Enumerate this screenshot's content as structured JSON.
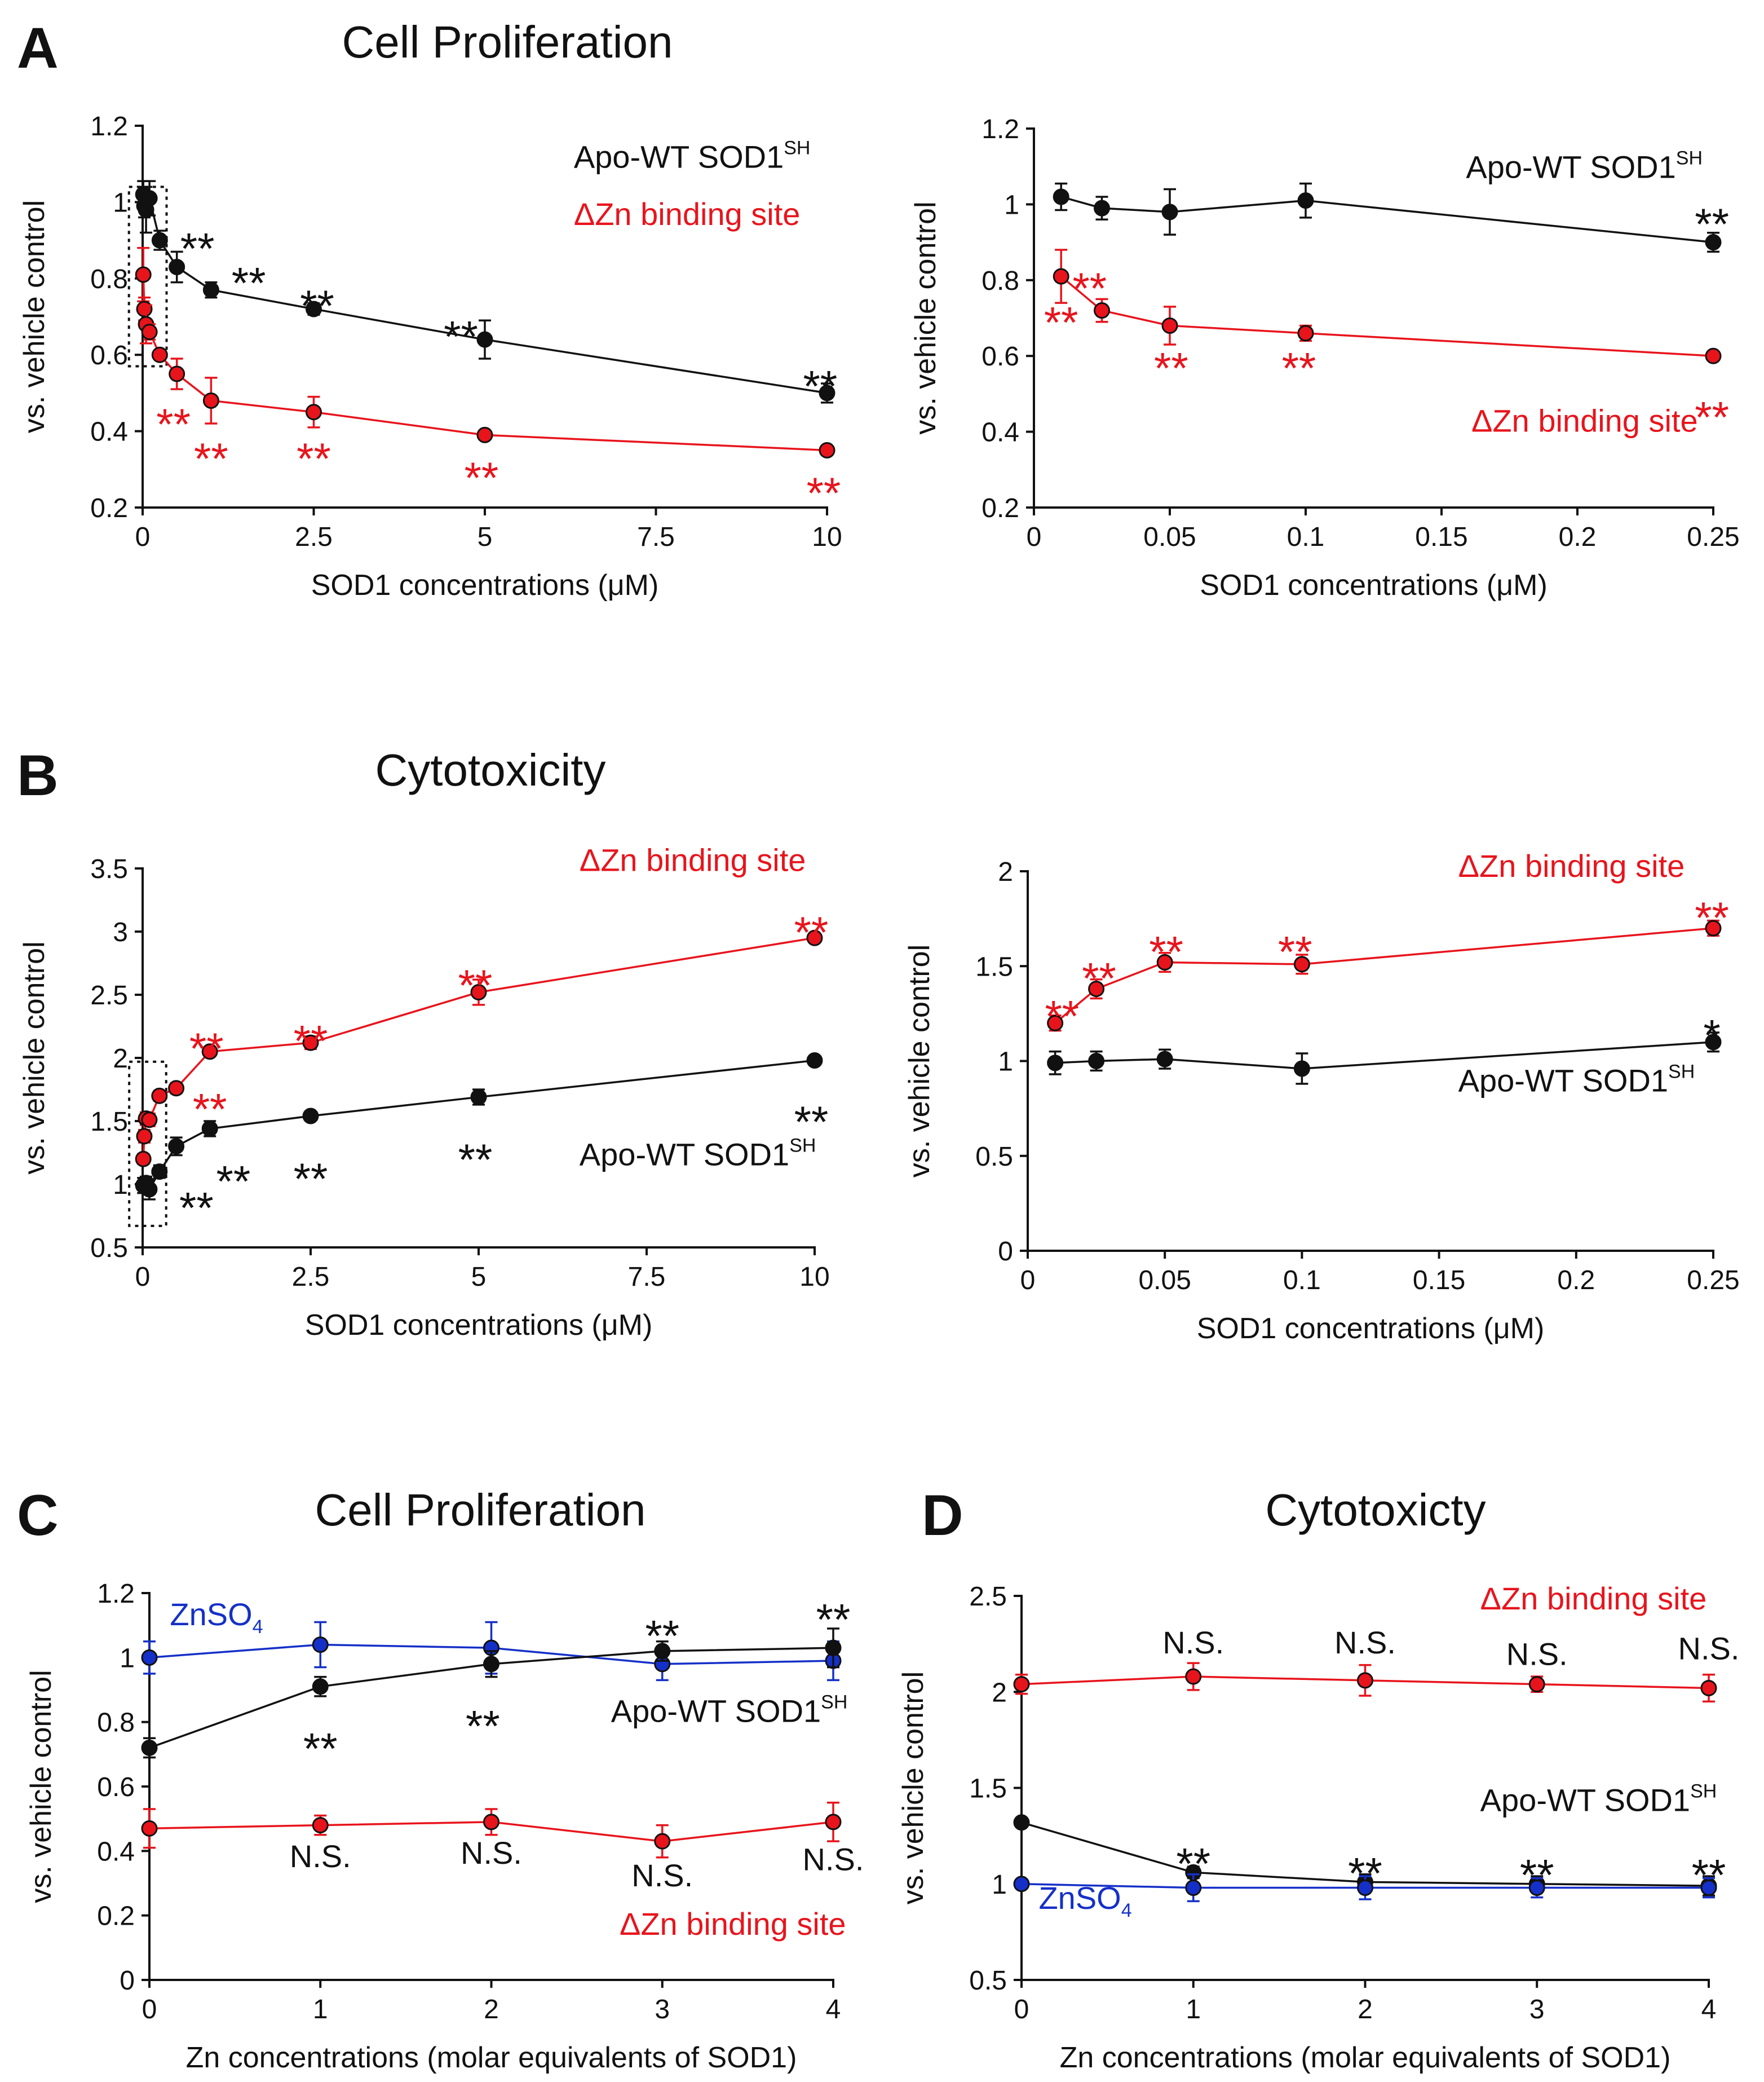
{
  "figure": {
    "panel_letters": [
      "A",
      "B",
      "C",
      "D"
    ],
    "titles": {
      "A": "Cell Proliferation",
      "B": "Cytotoxicity",
      "C": "Cell Proliferation",
      "D": "Cytotoxicty"
    }
  },
  "colors": {
    "black": "#111111",
    "red": "#e8141c",
    "blue": "#1530c8"
  },
  "chart_data": [
    {
      "id": "A-left",
      "panel": "A",
      "type": "line",
      "xlabel": "SOD1 concentrations (μM)",
      "ylabel": "vs. vehicle control",
      "xlim": [
        0,
        10
      ],
      "ylim": [
        0.2,
        1.2
      ],
      "xticks": [
        0,
        2.5,
        5,
        7.5,
        10
      ],
      "xtick_labels": [
        "0",
        "2.5",
        "5",
        "7.5",
        "10"
      ],
      "yticks": [
        0.2,
        0.4,
        0.6,
        0.8,
        1,
        1.2
      ],
      "ytick_labels": [
        "0.2",
        "0.4",
        "0.6",
        "0.8",
        "1",
        "1.2"
      ],
      "zoom_box": {
        "x": [
          -0.2,
          0.35
        ],
        "y": [
          0.57,
          1.04
        ]
      },
      "series": [
        {
          "color": "#111111",
          "x": [
            0.01,
            0.025,
            0.05,
            0.1,
            0.25,
            0.5,
            1,
            2.5,
            5,
            10
          ],
          "y": [
            1.02,
            0.99,
            0.98,
            1.01,
            0.9,
            0.83,
            0.77,
            0.72,
            0.64,
            0.5
          ],
          "err": [
            0.035,
            0.03,
            0.06,
            0.045,
            0.025,
            0.04,
            0.02,
            0.015,
            0.05,
            0.025
          ]
        },
        {
          "color": "#e8141c",
          "x": [
            0.01,
            0.025,
            0.05,
            0.1,
            0.25,
            0.5,
            1,
            2.5,
            5,
            10
          ],
          "y": [
            0.81,
            0.72,
            0.68,
            0.66,
            0.6,
            0.55,
            0.48,
            0.45,
            0.39,
            0.35
          ],
          "err": [
            0.07,
            0.03,
            0.05,
            0.02,
            0.005,
            0.04,
            0.06,
            0.04,
            0.005,
            0.01
          ]
        }
      ],
      "labels": [
        {
          "text": "Apo-WT SOD1",
          "sup": "SH",
          "color": "#111111",
          "x": 6.3,
          "y": 1.09
        },
        {
          "text": "ΔZn binding site",
          "color": "#e8141c",
          "x": 6.3,
          "y": 0.94
        }
      ],
      "annotations": [
        {
          "text": "**",
          "color": "#111111",
          "x": 0.8,
          "y": 0.88
        },
        {
          "text": "**",
          "color": "#111111",
          "x": 1.55,
          "y": 0.79
        },
        {
          "text": "**",
          "color": "#111111",
          "x": 2.55,
          "y": 0.73
        },
        {
          "text": "**",
          "color": "#111111",
          "x": 4.65,
          "y": 0.65
        },
        {
          "text": "**",
          "color": "#111111",
          "x": 9.9,
          "y": 0.52
        },
        {
          "text": "**",
          "color": "#e8141c",
          "x": 0.45,
          "y": 0.42
        },
        {
          "text": "**",
          "color": "#e8141c",
          "x": 1.0,
          "y": 0.33
        },
        {
          "text": "**",
          "color": "#e8141c",
          "x": 2.5,
          "y": 0.33
        },
        {
          "text": "**",
          "color": "#e8141c",
          "x": 4.95,
          "y": 0.28
        },
        {
          "text": "**",
          "color": "#e8141c",
          "x": 9.95,
          "y": 0.24
        }
      ]
    },
    {
      "id": "A-right",
      "panel": "A",
      "type": "line",
      "xlabel": "SOD1 concentrations (μM)",
      "ylabel": "vs. vehicle control",
      "xlim": [
        0,
        0.25
      ],
      "ylim": [
        0.2,
        1.2
      ],
      "xticks": [
        0,
        0.05,
        0.1,
        0.15,
        0.2,
        0.25
      ],
      "xtick_labels": [
        "0",
        "0.05",
        "0.1",
        "0.15",
        "0.2",
        "0.25"
      ],
      "yticks": [
        0.2,
        0.4,
        0.6,
        0.8,
        1,
        1.2
      ],
      "ytick_labels": [
        "0.2",
        "0.4",
        "0.6",
        "0.8",
        "1",
        "1.2"
      ],
      "series": [
        {
          "color": "#111111",
          "x": [
            0.01,
            0.025,
            0.05,
            0.1,
            0.25
          ],
          "y": [
            1.02,
            0.99,
            0.98,
            1.01,
            0.9
          ],
          "err": [
            0.035,
            0.03,
            0.06,
            0.045,
            0.025
          ]
        },
        {
          "color": "#e8141c",
          "x": [
            0.01,
            0.025,
            0.05,
            0.1,
            0.25
          ],
          "y": [
            0.81,
            0.72,
            0.68,
            0.66,
            0.6
          ],
          "err": [
            0.07,
            0.03,
            0.05,
            0.02,
            0.005
          ]
        }
      ],
      "labels": [
        {
          "text": "Apo-WT SOD1",
          "sup": "SH",
          "color": "#111111",
          "x": 0.159,
          "y": 1.07
        },
        {
          "text": "ΔZn binding site",
          "color": "#e8141c",
          "x": 0.161,
          "y": 0.4
        }
      ],
      "annotations": [
        {
          "text": "**",
          "color": "#111111",
          "x": 0.2495,
          "y": 0.95
        },
        {
          "text": "**",
          "color": "#e8141c",
          "x": 0.0205,
          "y": 0.78
        },
        {
          "text": "**",
          "color": "#e8141c",
          "x": 0.01,
          "y": 0.69
        },
        {
          "text": "**",
          "color": "#e8141c",
          "x": 0.0505,
          "y": 0.57
        },
        {
          "text": "**",
          "color": "#e8141c",
          "x": 0.0975,
          "y": 0.57
        },
        {
          "text": "**",
          "color": "#e8141c",
          "x": 0.2495,
          "y": 0.44
        }
      ]
    },
    {
      "id": "B-left",
      "panel": "B",
      "type": "line",
      "xlabel": "SOD1 concentrations (μM)",
      "ylabel": "vs. vehicle control",
      "xlim": [
        0,
        10
      ],
      "ylim": [
        0.5,
        3.5
      ],
      "xticks": [
        0,
        2.5,
        5,
        7.5,
        10
      ],
      "xtick_labels": [
        "0",
        "2.5",
        "5",
        "7.5",
        "10"
      ],
      "yticks": [
        0.5,
        1,
        1.5,
        2,
        2.5,
        3,
        3.5
      ],
      "ytick_labels": [
        "0.5",
        "1",
        "1.5",
        "2",
        "2.5",
        "3",
        "3.5"
      ],
      "zoom_box": {
        "x": [
          -0.2,
          0.35
        ],
        "y": [
          0.67,
          1.97
        ]
      },
      "series": [
        {
          "color": "#e8141c",
          "x": [
            0.01,
            0.025,
            0.05,
            0.1,
            0.25,
            0.5,
            1,
            2.5,
            5,
            10
          ],
          "y": [
            1.2,
            1.38,
            1.52,
            1.51,
            1.7,
            1.76,
            2.05,
            2.12,
            2.52,
            2.95
          ],
          "err": [
            0.04,
            0.05,
            0.05,
            0.05,
            0.04,
            0.04,
            0.03,
            0.05,
            0.1,
            0.02
          ]
        },
        {
          "color": "#111111",
          "x": [
            0.01,
            0.025,
            0.05,
            0.1,
            0.25,
            0.5,
            1,
            2.5,
            5,
            10
          ],
          "y": [
            0.99,
            1.0,
            1.01,
            0.96,
            1.1,
            1.3,
            1.44,
            1.54,
            1.69,
            1.98
          ],
          "err": [
            0.06,
            0.05,
            0.05,
            0.08,
            0.05,
            0.07,
            0.06,
            0.03,
            0.06,
            0.02
          ]
        }
      ],
      "labels": [
        {
          "text": "ΔZn binding site",
          "color": "#e8141c",
          "x": 6.5,
          "y": 3.48
        },
        {
          "text": "Apo-WT SOD1",
          "sup": "SH",
          "color": "#111111",
          "x": 6.5,
          "y": 1.15
        }
      ],
      "annotations": [
        {
          "text": "**",
          "color": "#e8141c",
          "x": 9.95,
          "y": 3.0
        },
        {
          "text": "**",
          "color": "#e8141c",
          "x": 4.95,
          "y": 2.58
        },
        {
          "text": "**",
          "color": "#e8141c",
          "x": 2.5,
          "y": 2.14
        },
        {
          "text": "**",
          "color": "#e8141c",
          "x": 0.95,
          "y": 2.08
        },
        {
          "text": "**",
          "color": "#e8141c",
          "x": 1.0,
          "y": 1.6
        },
        {
          "text": "**",
          "color": "#111111",
          "x": 1.35,
          "y": 1.03
        },
        {
          "text": "**",
          "color": "#111111",
          "x": 0.8,
          "y": 0.82
        },
        {
          "text": "**",
          "color": "#111111",
          "x": 2.5,
          "y": 1.05
        },
        {
          "text": "**",
          "color": "#111111",
          "x": 4.95,
          "y": 1.2
        },
        {
          "text": "**",
          "color": "#111111",
          "x": 9.95,
          "y": 1.5
        }
      ]
    },
    {
      "id": "B-right",
      "panel": "B",
      "type": "line",
      "xlabel": "SOD1 concentrations (μM)",
      "ylabel": "vs. vehicle control",
      "xlim": [
        0,
        0.25
      ],
      "ylim": [
        0,
        2
      ],
      "xticks": [
        0,
        0.05,
        0.1,
        0.15,
        0.2,
        0.25
      ],
      "xtick_labels": [
        "0",
        "0.05",
        "0.1",
        "0.15",
        "0.2",
        "0.25"
      ],
      "yticks": [
        0,
        0.5,
        1,
        1.5,
        2
      ],
      "ytick_labels": [
        "0",
        "0.5",
        "1",
        "1.5",
        "2"
      ],
      "series": [
        {
          "color": "#e8141c",
          "x": [
            0.01,
            0.025,
            0.05,
            0.1,
            0.25
          ],
          "y": [
            1.2,
            1.38,
            1.52,
            1.51,
            1.7
          ],
          "err": [
            0.04,
            0.05,
            0.05,
            0.05,
            0.04
          ]
        },
        {
          "color": "#111111",
          "x": [
            0.01,
            0.025,
            0.05,
            0.1,
            0.25
          ],
          "y": [
            0.99,
            1.0,
            1.01,
            0.96,
            1.1
          ],
          "err": [
            0.06,
            0.05,
            0.05,
            0.08,
            0.05
          ]
        }
      ],
      "labels": [
        {
          "text": "ΔZn binding site",
          "color": "#e8141c",
          "x": 0.157,
          "y": 1.97
        },
        {
          "text": "Apo-WT SOD1",
          "sup": "SH",
          "color": "#111111",
          "x": 0.157,
          "y": 0.84
        }
      ],
      "annotations": [
        {
          "text": "**",
          "color": "#e8141c",
          "x": 0.0125,
          "y": 1.24
        },
        {
          "text": "**",
          "color": "#e8141c",
          "x": 0.026,
          "y": 1.44
        },
        {
          "text": "**",
          "color": "#e8141c",
          "x": 0.0505,
          "y": 1.58
        },
        {
          "text": "**",
          "color": "#e8141c",
          "x": 0.0975,
          "y": 1.58
        },
        {
          "text": "**",
          "color": "#e8141c",
          "x": 0.2495,
          "y": 1.76
        },
        {
          "text": "*",
          "color": "#111111",
          "x": 0.2495,
          "y": 1.14
        }
      ]
    },
    {
      "id": "C",
      "panel": "C",
      "type": "line",
      "xlabel": "Zn concentrations (molar equivalents of SOD1)",
      "ylabel": "vs. vehicle control",
      "xlim": [
        0,
        4
      ],
      "ylim": [
        0,
        1.2
      ],
      "xticks": [
        0,
        1,
        2,
        3,
        4
      ],
      "xtick_labels": [
        "0",
        "1",
        "2",
        "3",
        "4"
      ],
      "yticks": [
        0,
        0.2,
        0.4,
        0.6,
        0.8,
        1,
        1.2
      ],
      "ytick_labels": [
        "0",
        "0.2",
        "0.4",
        "0.6",
        "0.8",
        "1",
        "1.2"
      ],
      "series": [
        {
          "color": "#1530c8",
          "x": [
            0,
            1,
            2,
            3,
            4
          ],
          "y": [
            1.0,
            1.04,
            1.03,
            0.98,
            0.99
          ],
          "err": [
            0.05,
            0.07,
            0.08,
            0.05,
            0.06
          ]
        },
        {
          "color": "#111111",
          "x": [
            0,
            1,
            2,
            3,
            4
          ],
          "y": [
            0.72,
            0.91,
            0.98,
            1.02,
            1.03
          ],
          "err": [
            0.03,
            0.03,
            0.04,
            0.03,
            0.06
          ]
        },
        {
          "color": "#e8141c",
          "x": [
            0,
            1,
            2,
            3,
            4
          ],
          "y": [
            0.47,
            0.48,
            0.49,
            0.43,
            0.49
          ],
          "err": [
            0.06,
            0.03,
            0.04,
            0.05,
            0.06
          ]
        }
      ],
      "labels": [
        {
          "text": "ZnSO",
          "sub": "4",
          "color": "#1530c8",
          "x": 0.12,
          "y": 1.1
        },
        {
          "text": "Apo-WT SOD1",
          "sup": "SH",
          "color": "#111111",
          "x": 2.7,
          "y": 0.8
        },
        {
          "text": "ΔZn binding site",
          "color": "#e8141c",
          "x": 2.75,
          "y": 0.14
        }
      ],
      "annotations": [
        {
          "text": "**",
          "color": "#111111",
          "x": 1.0,
          "y": 0.72
        },
        {
          "text": "**",
          "color": "#111111",
          "x": 1.95,
          "y": 0.79
        },
        {
          "text": "**",
          "color": "#111111",
          "x": 3.0,
          "y": 1.07
        },
        {
          "text": "**",
          "color": "#111111",
          "x": 4.0,
          "y": 1.12
        },
        {
          "text": "N.S.",
          "color": "#111111",
          "x": 1.0,
          "y": 0.35
        },
        {
          "text": "N.S.",
          "color": "#111111",
          "x": 2.0,
          "y": 0.36
        },
        {
          "text": "N.S.",
          "color": "#111111",
          "x": 3.0,
          "y": 0.29
        },
        {
          "text": "N.S.",
          "color": "#111111",
          "x": 4.0,
          "y": 0.34
        }
      ]
    },
    {
      "id": "D",
      "panel": "D",
      "type": "line",
      "xlabel": "Zn concentrations (molar equivalents of SOD1)",
      "ylabel": "vs. vehicle control",
      "xlim": [
        0,
        4
      ],
      "ylim": [
        0.5,
        2.5
      ],
      "xticks": [
        0,
        1,
        2,
        3,
        4
      ],
      "xtick_labels": [
        "0",
        "1",
        "2",
        "3",
        "4"
      ],
      "yticks": [
        0.5,
        1,
        1.5,
        2,
        2.5
      ],
      "ytick_labels": [
        "0.5",
        "1",
        "1.5",
        "2",
        "2.5"
      ],
      "series": [
        {
          "color": "#e8141c",
          "x": [
            0,
            1,
            2,
            3,
            4
          ],
          "y": [
            2.04,
            2.08,
            2.06,
            2.04,
            2.02
          ],
          "err": [
            0.05,
            0.07,
            0.08,
            0.04,
            0.07
          ]
        },
        {
          "color": "#111111",
          "x": [
            0,
            1,
            2,
            3,
            4
          ],
          "y": [
            1.32,
            1.06,
            1.01,
            1.0,
            0.99
          ],
          "err": [
            0.02,
            0.03,
            0.04,
            0.04,
            0.05
          ]
        },
        {
          "color": "#1530c8",
          "x": [
            0,
            1,
            2,
            3,
            4
          ],
          "y": [
            1.0,
            0.98,
            0.98,
            0.98,
            0.98
          ],
          "err": [
            0.02,
            0.07,
            0.06,
            0.05,
            0.05
          ]
        }
      ],
      "labels": [
        {
          "text": "ΔZn binding site",
          "color": "#e8141c",
          "x": 2.67,
          "y": 2.43
        },
        {
          "text": "Apo-WT SOD1",
          "sup": "SH",
          "color": "#111111",
          "x": 2.67,
          "y": 1.38
        },
        {
          "text": "ZnSO",
          "sub": "4",
          "color": "#1530c8",
          "x": 0.1,
          "y": 0.87
        }
      ],
      "annotations": [
        {
          "text": "N.S.",
          "color": "#111111",
          "x": 1.0,
          "y": 2.2
        },
        {
          "text": "N.S.",
          "color": "#111111",
          "x": 2.0,
          "y": 2.2
        },
        {
          "text": "N.S.",
          "color": "#111111",
          "x": 3.0,
          "y": 2.14
        },
        {
          "text": "N.S.",
          "color": "#111111",
          "x": 4.0,
          "y": 2.17
        },
        {
          "text": "**",
          "color": "#111111",
          "x": 1.0,
          "y": 1.11
        },
        {
          "text": "**",
          "color": "#111111",
          "x": 2.0,
          "y": 1.06
        },
        {
          "text": "**",
          "color": "#111111",
          "x": 3.0,
          "y": 1.05
        },
        {
          "text": "**",
          "color": "#111111",
          "x": 4.0,
          "y": 1.05
        }
      ]
    }
  ]
}
